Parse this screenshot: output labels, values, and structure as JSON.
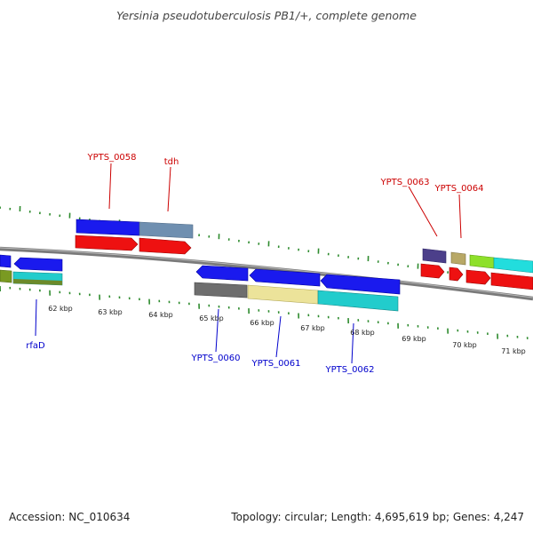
{
  "title": "Yersinia pseudotuberculosis PB1/+, complete genome",
  "footer": {
    "accession": "Accession: NC_010634",
    "topology": "Topology: circular; Length: 4,695,619 bp; Genes: 4,247"
  },
  "colors": {
    "tick": "#2e8b2e",
    "backbone": "#808080",
    "label_top": "#cc0000",
    "label_bottom": "#0000cc",
    "scale_text": "#222222"
  },
  "scale_labels": [
    "62 kbp",
    "63 kbp",
    "64 kbp",
    "65 kbp",
    "66 kbp",
    "67 kbp",
    "68 kbp",
    "69 kbp",
    "70 kbp",
    "71 kbp"
  ],
  "top_labels": [
    "YPTS_0058",
    "tdh",
    "YPTS_0063",
    "YPTS_0064"
  ],
  "bottom_labels": [
    "rfaD",
    "YPTS_0060",
    "YPTS_0061",
    "YPTS_0062"
  ]
}
